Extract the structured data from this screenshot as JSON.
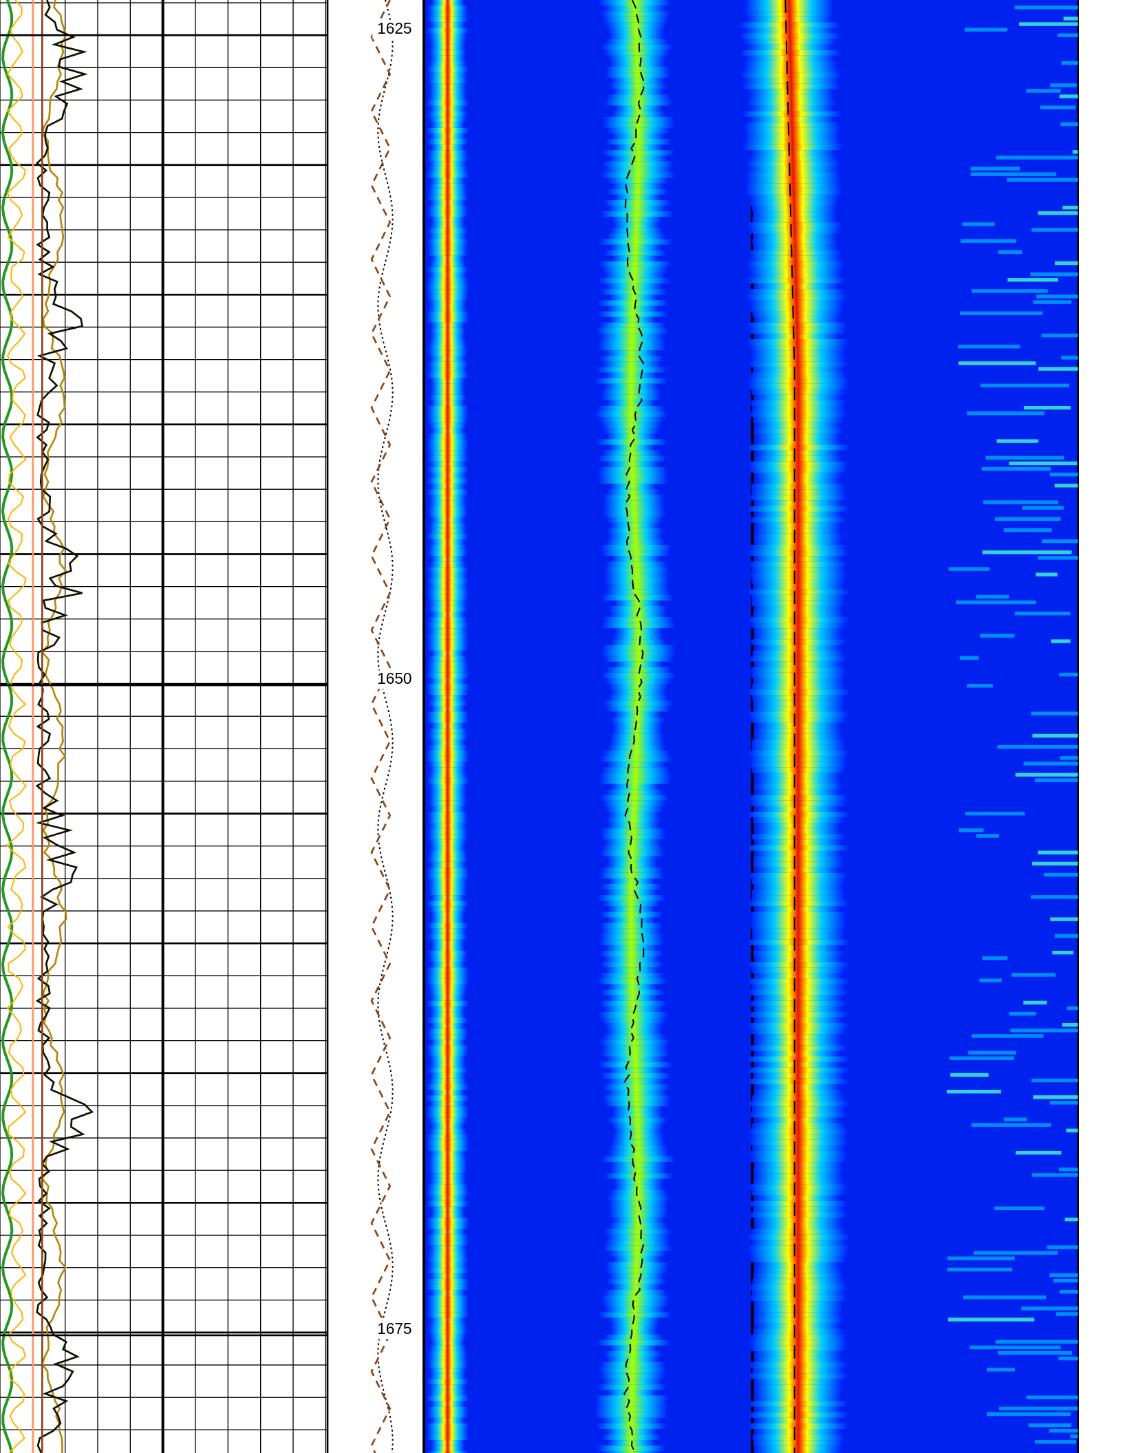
{
  "chart_data": {
    "type": "well-log",
    "ylim": [
      1623.86,
      1679.74
    ],
    "yticks": [
      1625,
      1650,
      1675
    ]
  }
}
